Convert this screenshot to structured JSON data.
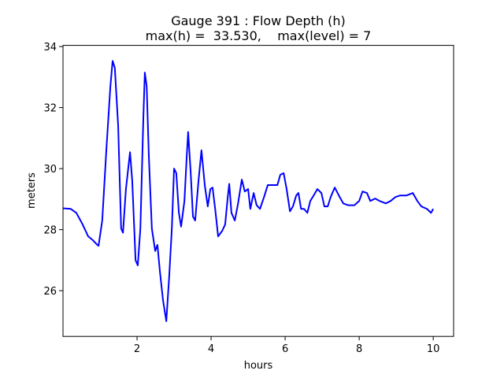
{
  "chart_data": {
    "type": "line",
    "title": "Gauge 391 : Flow Depth (h)",
    "subtitle": "max(h) =  33.530,    max(level) = 7",
    "x_label": "hours",
    "y_label": "meters",
    "color": "#0000ff",
    "x": [
      0,
      0.21,
      0.36,
      0.53,
      0.68,
      0.81,
      0.91,
      0.96,
      1.06,
      1.17,
      1.28,
      1.34,
      1.4,
      1.49,
      1.57,
      1.62,
      1.7,
      1.81,
      1.87,
      1.96,
      2.02,
      2.09,
      2.17,
      2.21,
      2.26,
      2.32,
      2.4,
      2.49,
      2.55,
      2.62,
      2.7,
      2.79,
      2.87,
      2.94,
      3.0,
      3.06,
      3.13,
      3.19,
      3.28,
      3.34,
      3.38,
      3.45,
      3.51,
      3.57,
      3.66,
      3.74,
      3.83,
      3.91,
      3.98,
      4.04,
      4.11,
      4.19,
      4.3,
      4.38,
      4.45,
      4.49,
      4.55,
      4.64,
      4.72,
      4.83,
      4.91,
      5.0,
      5.06,
      5.15,
      5.23,
      5.32,
      5.43,
      5.53,
      5.64,
      5.79,
      5.87,
      5.96,
      6.04,
      6.13,
      6.21,
      6.3,
      6.36,
      6.43,
      6.51,
      6.6,
      6.68,
      6.77,
      6.87,
      6.98,
      7.06,
      7.15,
      7.23,
      7.34,
      7.45,
      7.57,
      7.7,
      7.87,
      8.0,
      8.09,
      8.21,
      8.3,
      8.43,
      8.55,
      8.72,
      8.85,
      8.98,
      9.11,
      9.28,
      9.45,
      9.57,
      9.68,
      9.83,
      9.94,
      10.0
    ],
    "values": [
      28.7,
      28.68,
      28.55,
      28.17,
      27.78,
      27.65,
      27.52,
      27.47,
      28.3,
      30.6,
      32.7,
      33.53,
      33.3,
      31.4,
      28.04,
      27.9,
      29.33,
      30.54,
      29.6,
      27.0,
      26.83,
      28.04,
      31.65,
      33.15,
      32.7,
      30.36,
      28.04,
      27.3,
      27.5,
      26.6,
      25.7,
      25.0,
      26.5,
      28.04,
      30.0,
      29.85,
      28.55,
      28.1,
      28.94,
      30.36,
      31.2,
      29.85,
      28.43,
      28.3,
      29.6,
      30.6,
      29.45,
      28.76,
      29.33,
      29.38,
      28.68,
      27.78,
      27.96,
      28.17,
      29.07,
      29.5,
      28.55,
      28.3,
      28.8,
      29.64,
      29.25,
      29.33,
      28.68,
      29.2,
      28.8,
      28.68,
      29.07,
      29.46,
      29.46,
      29.46,
      29.8,
      29.85,
      29.33,
      28.6,
      28.76,
      29.12,
      29.2,
      28.68,
      28.68,
      28.55,
      28.94,
      29.12,
      29.33,
      29.2,
      28.76,
      28.76,
      29.07,
      29.38,
      29.12,
      28.86,
      28.8,
      28.8,
      28.94,
      29.25,
      29.2,
      28.94,
      29.02,
      28.94,
      28.86,
      28.94,
      29.07,
      29.12,
      29.12,
      29.2,
      28.94,
      28.76,
      28.68,
      28.55,
      28.68
    ],
    "xlim": [
      0,
      10.55
    ],
    "xticks": [
      2,
      4,
      6,
      8,
      10
    ],
    "ylim": [
      24.5,
      34.04
    ],
    "yticks": [
      26,
      28,
      30,
      32,
      34
    ],
    "grid": false
  }
}
